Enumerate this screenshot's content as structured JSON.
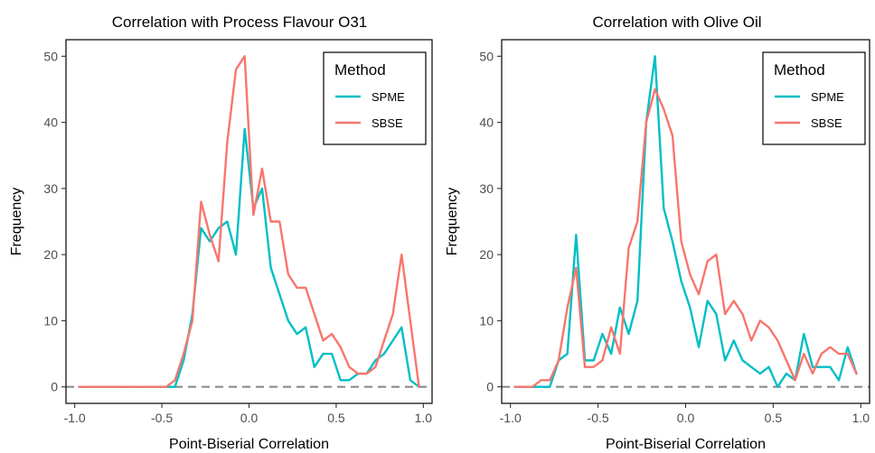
{
  "legend": {
    "title": "Method",
    "entries": [
      {
        "name": "SPME",
        "color": "#00BFC4"
      },
      {
        "name": "SBSE",
        "color": "#F8766D"
      }
    ]
  },
  "chart_data": [
    {
      "type": "line",
      "title": "Correlation with Process Flavour O31",
      "xlabel": "Point-Biserial Correlation",
      "ylabel": "Frequency",
      "xlim": [
        -1.05,
        1.05
      ],
      "ylim": [
        -2.5,
        52.5
      ],
      "xticks": [
        "-1.0",
        "-0.5",
        "0.0",
        "0.5",
        "1.0"
      ],
      "xtick_values": [
        -1.0,
        -0.5,
        0.0,
        0.5,
        1.0
      ],
      "yticks": [
        "0",
        "10",
        "20",
        "30",
        "40",
        "50"
      ],
      "ytick_values": [
        0,
        10,
        20,
        30,
        40,
        50
      ],
      "grid": false,
      "hline": 0,
      "legend_position": "top-right",
      "x": [
        -0.975,
        -0.925,
        -0.875,
        -0.825,
        -0.775,
        -0.725,
        -0.675,
        -0.625,
        -0.575,
        -0.525,
        -0.475,
        -0.425,
        -0.375,
        -0.325,
        -0.275,
        -0.225,
        -0.175,
        -0.125,
        -0.075,
        -0.025,
        0.025,
        0.075,
        0.125,
        0.175,
        0.225,
        0.275,
        0.325,
        0.375,
        0.425,
        0.475,
        0.525,
        0.575,
        0.625,
        0.675,
        0.725,
        0.775,
        0.825,
        0.875,
        0.925,
        0.975
      ],
      "series": [
        {
          "name": "SPME",
          "color": "#00BFC4",
          "values": [
            0,
            0,
            0,
            0,
            0,
            0,
            0,
            0,
            0,
            0,
            0,
            0,
            4,
            11,
            24,
            22,
            24,
            25,
            20,
            39,
            27,
            30,
            18,
            14,
            10,
            8,
            9,
            3,
            5,
            5,
            1,
            1,
            2,
            2,
            4,
            5,
            7,
            9,
            1,
            0
          ]
        },
        {
          "name": "SBSE",
          "color": "#F8766D",
          "values": [
            0,
            0,
            0,
            0,
            0,
            0,
            0,
            0,
            0,
            0,
            0,
            1,
            5,
            10,
            28,
            23,
            19,
            37,
            48,
            50,
            26,
            33,
            25,
            25,
            17,
            15,
            15,
            11,
            7,
            8,
            6,
            3,
            2,
            2,
            3,
            7,
            11,
            20,
            10,
            0
          ]
        }
      ]
    },
    {
      "type": "line",
      "title": "Correlation with Olive Oil",
      "xlabel": "Point-Biserial Correlation",
      "ylabel": "Frequency",
      "xlim": [
        -1.05,
        1.05
      ],
      "ylim": [
        -2.5,
        52.5
      ],
      "xticks": [
        "-1.0",
        "-0.5",
        "0.0",
        "0.5",
        "1.0"
      ],
      "xtick_values": [
        -1.0,
        -0.5,
        0.0,
        0.5,
        1.0
      ],
      "yticks": [
        "0",
        "10",
        "20",
        "30",
        "40",
        "50"
      ],
      "ytick_values": [
        0,
        10,
        20,
        30,
        40,
        50
      ],
      "grid": false,
      "hline": 0,
      "legend_position": "top-right",
      "x": [
        -0.975,
        -0.925,
        -0.875,
        -0.825,
        -0.775,
        -0.725,
        -0.675,
        -0.625,
        -0.575,
        -0.525,
        -0.475,
        -0.425,
        -0.375,
        -0.325,
        -0.275,
        -0.225,
        -0.175,
        -0.125,
        -0.075,
        -0.025,
        0.025,
        0.075,
        0.125,
        0.175,
        0.225,
        0.275,
        0.325,
        0.375,
        0.425,
        0.475,
        0.525,
        0.575,
        0.625,
        0.675,
        0.725,
        0.775,
        0.825,
        0.875,
        0.925,
        0.975
      ],
      "series": [
        {
          "name": "SPME",
          "color": "#00BFC4",
          "values": [
            0,
            0,
            0,
            0,
            0,
            4,
            5,
            23,
            4,
            4,
            8,
            5,
            12,
            8,
            13,
            40,
            50,
            27,
            22,
            16,
            12,
            6,
            13,
            11,
            4,
            7,
            4,
            3,
            2,
            3,
            0,
            2,
            1,
            8,
            3,
            3,
            3,
            1,
            6,
            2
          ]
        },
        {
          "name": "SBSE",
          "color": "#F8766D",
          "values": [
            0,
            0,
            0,
            1,
            1,
            4,
            12,
            18,
            3,
            3,
            4,
            9,
            5,
            21,
            25,
            40,
            45,
            42,
            38,
            22,
            17,
            14,
            19,
            20,
            11,
            13,
            11,
            7,
            10,
            9,
            7,
            4,
            1,
            5,
            2,
            5,
            6,
            5,
            5,
            2
          ]
        }
      ]
    }
  ]
}
